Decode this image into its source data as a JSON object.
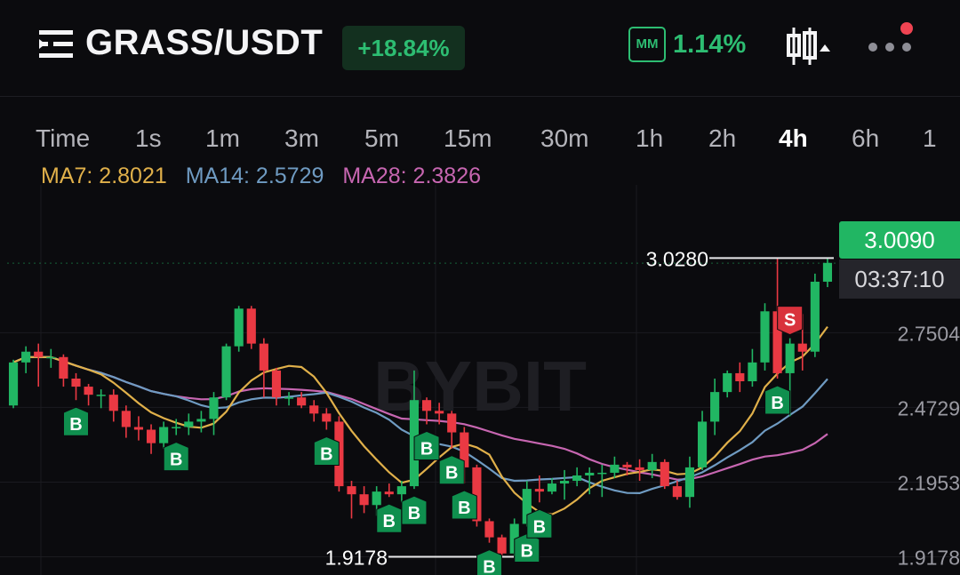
{
  "header": {
    "pair": "GRASS/USDT",
    "change": "+18.84%",
    "mm_label": "MM",
    "mm_value": "1.14%",
    "icons": [
      "menu-icon",
      "candle-type-icon",
      "more-icon"
    ],
    "notification_dot_color": "#f04452"
  },
  "tabs": [
    {
      "label": "Time"
    },
    {
      "label": "1s"
    },
    {
      "label": "1m"
    },
    {
      "label": "3m"
    },
    {
      "label": "5m"
    },
    {
      "label": "15m"
    },
    {
      "label": "30m"
    },
    {
      "label": "1h"
    },
    {
      "label": "2h"
    },
    {
      "label": "4h",
      "active": true
    },
    {
      "label": "6h"
    },
    {
      "label": "1"
    }
  ],
  "ma": {
    "ma7": "MA7: 2.8021",
    "ma14": "MA14: 2.5729",
    "ma28": "MA28: 2.3826"
  },
  "colors": {
    "up": "#21b663",
    "down": "#ea3943",
    "ma7": "#e0b04a",
    "ma14": "#6f9bc2",
    "ma28": "#c766b1",
    "background": "#0b0b0e"
  },
  "price": {
    "current": "3.0090",
    "countdown": "03:37:10",
    "high_label": "3.0280",
    "low_label": "1.9178"
  },
  "chart_data": {
    "type": "candlestick",
    "y_ticks": [
      {
        "value": 2.7504,
        "label": "2.7504"
      },
      {
        "value": 2.4729,
        "label": "2.4729"
      },
      {
        "value": 2.1953,
        "label": "2.1953"
      },
      {
        "value": 1.9178,
        "label": "1.9178"
      }
    ],
    "ylim": [
      1.85,
      3.3
    ],
    "candles": [
      [
        2.48,
        2.64,
        2.65,
        2.47
      ],
      [
        2.64,
        2.68,
        2.7,
        2.6
      ],
      [
        2.68,
        2.66,
        2.71,
        2.55
      ],
      [
        2.66,
        2.66,
        2.69,
        2.62
      ],
      [
        2.66,
        2.58,
        2.67,
        2.55
      ],
      [
        2.58,
        2.55,
        2.6,
        2.5
      ],
      [
        2.55,
        2.52,
        2.56,
        2.48
      ],
      [
        2.52,
        2.52,
        2.54,
        2.47
      ],
      [
        2.52,
        2.46,
        2.54,
        2.42
      ],
      [
        2.46,
        2.4,
        2.48,
        2.36
      ],
      [
        2.4,
        2.39,
        2.44,
        2.35
      ],
      [
        2.39,
        2.34,
        2.41,
        2.3
      ],
      [
        2.34,
        2.4,
        2.42,
        2.32
      ],
      [
        2.4,
        2.4,
        2.43,
        2.37
      ],
      [
        2.4,
        2.42,
        2.45,
        2.37
      ],
      [
        2.42,
        2.43,
        2.46,
        2.38
      ],
      [
        2.43,
        2.51,
        2.53,
        2.37
      ],
      [
        2.51,
        2.7,
        2.71,
        2.5
      ],
      [
        2.7,
        2.84,
        2.85,
        2.68
      ],
      [
        2.84,
        2.71,
        2.85,
        2.69
      ],
      [
        2.71,
        2.61,
        2.73,
        2.51
      ],
      [
        2.61,
        2.51,
        2.62,
        2.48
      ],
      [
        2.51,
        2.51,
        2.53,
        2.48
      ],
      [
        2.51,
        2.48,
        2.53,
        2.47
      ],
      [
        2.48,
        2.45,
        2.5,
        2.42
      ],
      [
        2.45,
        2.42,
        2.47,
        2.39
      ],
      [
        2.42,
        2.18,
        2.44,
        2.16
      ],
      [
        2.18,
        2.15,
        2.2,
        2.06
      ],
      [
        2.15,
        2.11,
        2.18,
        2.08
      ],
      [
        2.11,
        2.16,
        2.18,
        2.07
      ],
      [
        2.16,
        2.15,
        2.19,
        2.14
      ],
      [
        2.15,
        2.18,
        2.2,
        2.12
      ],
      [
        2.18,
        2.5,
        2.61,
        2.17
      ],
      [
        2.5,
        2.46,
        2.51,
        2.41
      ],
      [
        2.46,
        2.45,
        2.49,
        2.41
      ],
      [
        2.45,
        2.38,
        2.46,
        2.32
      ],
      [
        2.38,
        2.25,
        2.4,
        2.19
      ],
      [
        2.25,
        2.05,
        2.26,
        2.03
      ],
      [
        2.05,
        1.99,
        2.06,
        1.97
      ],
      [
        1.99,
        1.93,
        2.0,
        1.92
      ],
      [
        1.93,
        2.04,
        2.06,
        1.92
      ],
      [
        2.04,
        2.17,
        2.2,
        2.03
      ],
      [
        2.17,
        2.16,
        2.22,
        2.12
      ],
      [
        2.16,
        2.19,
        2.21,
        2.15
      ],
      [
        2.19,
        2.2,
        2.24,
        2.13
      ],
      [
        2.2,
        2.22,
        2.25,
        2.18
      ],
      [
        2.22,
        2.23,
        2.25,
        2.15
      ],
      [
        2.23,
        2.23,
        2.26,
        2.14
      ],
      [
        2.23,
        2.26,
        2.29,
        2.21
      ],
      [
        2.26,
        2.25,
        2.27,
        2.22
      ],
      [
        2.25,
        2.24,
        2.28,
        2.2
      ],
      [
        2.24,
        2.27,
        2.3,
        2.21
      ],
      [
        2.27,
        2.18,
        2.28,
        2.17
      ],
      [
        2.18,
        2.14,
        2.2,
        2.13
      ],
      [
        2.14,
        2.25,
        2.29,
        2.1
      ],
      [
        2.25,
        2.42,
        2.46,
        2.24
      ],
      [
        2.42,
        2.53,
        2.58,
        2.37
      ],
      [
        2.53,
        2.6,
        2.61,
        2.51
      ],
      [
        2.6,
        2.57,
        2.64,
        2.53
      ],
      [
        2.57,
        2.64,
        2.69,
        2.55
      ],
      [
        2.64,
        2.83,
        2.86,
        2.61
      ],
      [
        2.83,
        2.6,
        3.03,
        2.58
      ],
      [
        2.6,
        2.71,
        2.73,
        2.44
      ],
      [
        2.71,
        2.68,
        2.82,
        2.61
      ],
      [
        2.68,
        2.94,
        2.97,
        2.66
      ],
      [
        2.94,
        3.01,
        3.03,
        2.92
      ]
    ],
    "buy_markers": [
      5,
      13,
      25,
      30,
      32,
      33,
      35,
      36,
      38,
      41,
      42,
      61
    ],
    "sell_markers": [
      62
    ],
    "watermark": "BYBIT"
  }
}
